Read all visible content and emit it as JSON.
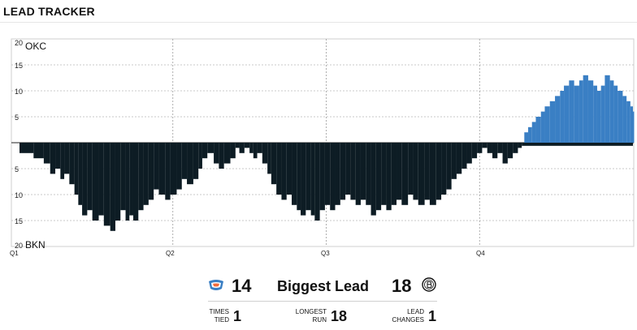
{
  "header": {
    "title": "LEAD TRACKER"
  },
  "chart_data": {
    "type": "bar",
    "x_range": [
      0,
      48
    ],
    "ylim": [
      -20,
      20
    ],
    "yticks": [
      "20",
      "15",
      "10",
      "5",
      "",
      "5",
      "10",
      "15",
      "20"
    ],
    "team_top_label": "OKC",
    "team_bottom_label": "BKN",
    "quarter_labels": [
      "Q1",
      "Q2",
      "Q3",
      "Q4"
    ],
    "colors": {
      "okc": "#3a7fc4",
      "bkn": "#0d1c24"
    },
    "grid": true,
    "series": [
      {
        "values": [
          [
            0.0,
            -2
          ],
          [
            1.1,
            -3
          ],
          [
            1.9,
            -4
          ],
          [
            2.4,
            -6
          ],
          [
            2.8,
            -5
          ],
          [
            3.2,
            -7
          ],
          [
            3.5,
            -6
          ],
          [
            3.9,
            -8
          ],
          [
            4.3,
            -10
          ],
          [
            4.6,
            -12
          ],
          [
            4.9,
            -14
          ],
          [
            5.3,
            -13
          ],
          [
            5.7,
            -15
          ],
          [
            6.2,
            -14
          ],
          [
            6.6,
            -16
          ],
          [
            7.1,
            -17
          ],
          [
            7.5,
            -15
          ],
          [
            7.9,
            -13
          ],
          [
            8.3,
            -15
          ],
          [
            8.6,
            -14
          ],
          [
            8.9,
            -15
          ],
          [
            9.3,
            -13
          ],
          [
            9.7,
            -12
          ],
          [
            10.1,
            -11
          ],
          [
            10.5,
            -9
          ],
          [
            10.9,
            -10
          ],
          [
            11.4,
            -11
          ],
          [
            11.8,
            -10
          ],
          [
            12.3,
            -9
          ],
          [
            12.7,
            -7
          ],
          [
            13.1,
            -8
          ],
          [
            13.6,
            -7
          ],
          [
            14.0,
            -5
          ],
          [
            14.3,
            -3
          ],
          [
            14.7,
            -2
          ],
          [
            15.2,
            -4
          ],
          [
            15.6,
            -5
          ],
          [
            16.0,
            -4
          ],
          [
            16.5,
            -3
          ],
          [
            16.9,
            -1
          ],
          [
            17.2,
            -2
          ],
          [
            17.6,
            -1
          ],
          [
            18.0,
            -2
          ],
          [
            18.3,
            -3
          ],
          [
            18.6,
            -2
          ],
          [
            19.0,
            -4
          ],
          [
            19.4,
            -6
          ],
          [
            19.7,
            -8
          ],
          [
            20.1,
            -10
          ],
          [
            20.5,
            -11
          ],
          [
            20.9,
            -10
          ],
          [
            21.3,
            -12
          ],
          [
            21.7,
            -13
          ],
          [
            22.0,
            -14
          ],
          [
            22.4,
            -13
          ],
          [
            22.8,
            -14
          ],
          [
            23.1,
            -15
          ],
          [
            23.5,
            -13
          ],
          [
            23.9,
            -12
          ],
          [
            24.3,
            -13
          ],
          [
            24.7,
            -12
          ],
          [
            25.1,
            -11
          ],
          [
            25.5,
            -10
          ],
          [
            25.9,
            -11
          ],
          [
            26.3,
            -12
          ],
          [
            26.7,
            -11
          ],
          [
            27.1,
            -12
          ],
          [
            27.5,
            -14
          ],
          [
            27.9,
            -13
          ],
          [
            28.3,
            -12
          ],
          [
            28.7,
            -13
          ],
          [
            29.1,
            -12
          ],
          [
            29.5,
            -11
          ],
          [
            29.9,
            -12
          ],
          [
            30.4,
            -10
          ],
          [
            30.8,
            -11
          ],
          [
            31.2,
            -12
          ],
          [
            31.7,
            -11
          ],
          [
            32.1,
            -12
          ],
          [
            32.6,
            -11
          ],
          [
            33.0,
            -10
          ],
          [
            33.4,
            -9
          ],
          [
            33.8,
            -7
          ],
          [
            34.2,
            -6
          ],
          [
            34.6,
            -5
          ],
          [
            35.0,
            -4
          ],
          [
            35.4,
            -3
          ],
          [
            35.8,
            -2
          ],
          [
            36.2,
            -1
          ],
          [
            36.6,
            -2
          ],
          [
            37.0,
            -3
          ],
          [
            37.4,
            -2
          ],
          [
            37.8,
            -4
          ],
          [
            38.2,
            -3
          ],
          [
            38.6,
            -2
          ],
          [
            39.0,
            -1
          ],
          [
            39.3,
            -0.6
          ]
        ]
      },
      {
        "values": [
          [
            39.5,
            2
          ],
          [
            39.8,
            3
          ],
          [
            40.1,
            4
          ],
          [
            40.4,
            5
          ],
          [
            40.8,
            6
          ],
          [
            41.1,
            7
          ],
          [
            41.5,
            8
          ],
          [
            41.9,
            9
          ],
          [
            42.3,
            10
          ],
          [
            42.6,
            11
          ],
          [
            43.0,
            12
          ],
          [
            43.4,
            11
          ],
          [
            43.8,
            12
          ],
          [
            44.1,
            13
          ],
          [
            44.5,
            12
          ],
          [
            44.9,
            11
          ],
          [
            45.2,
            10
          ],
          [
            45.5,
            11
          ],
          [
            45.8,
            13
          ],
          [
            46.2,
            12
          ],
          [
            46.5,
            11
          ],
          [
            46.8,
            10
          ],
          [
            47.2,
            9
          ],
          [
            47.5,
            8
          ],
          [
            47.8,
            7
          ],
          [
            48.0,
            6
          ]
        ]
      }
    ]
  },
  "stats": {
    "okc_biggest_lead": "14",
    "biggest_lead_label": "Biggest Lead",
    "bkn_biggest_lead": "18",
    "times_tied_label_1": "TIMES",
    "times_tied_label_2": "TIED",
    "times_tied_value": "1",
    "longest_run_label_1": "LONGEST",
    "longest_run_label_2": "RUN",
    "longest_run_value": "18",
    "lead_changes_label_1": "LEAD",
    "lead_changes_label_2": "CHANGES",
    "lead_changes_value": "1"
  }
}
